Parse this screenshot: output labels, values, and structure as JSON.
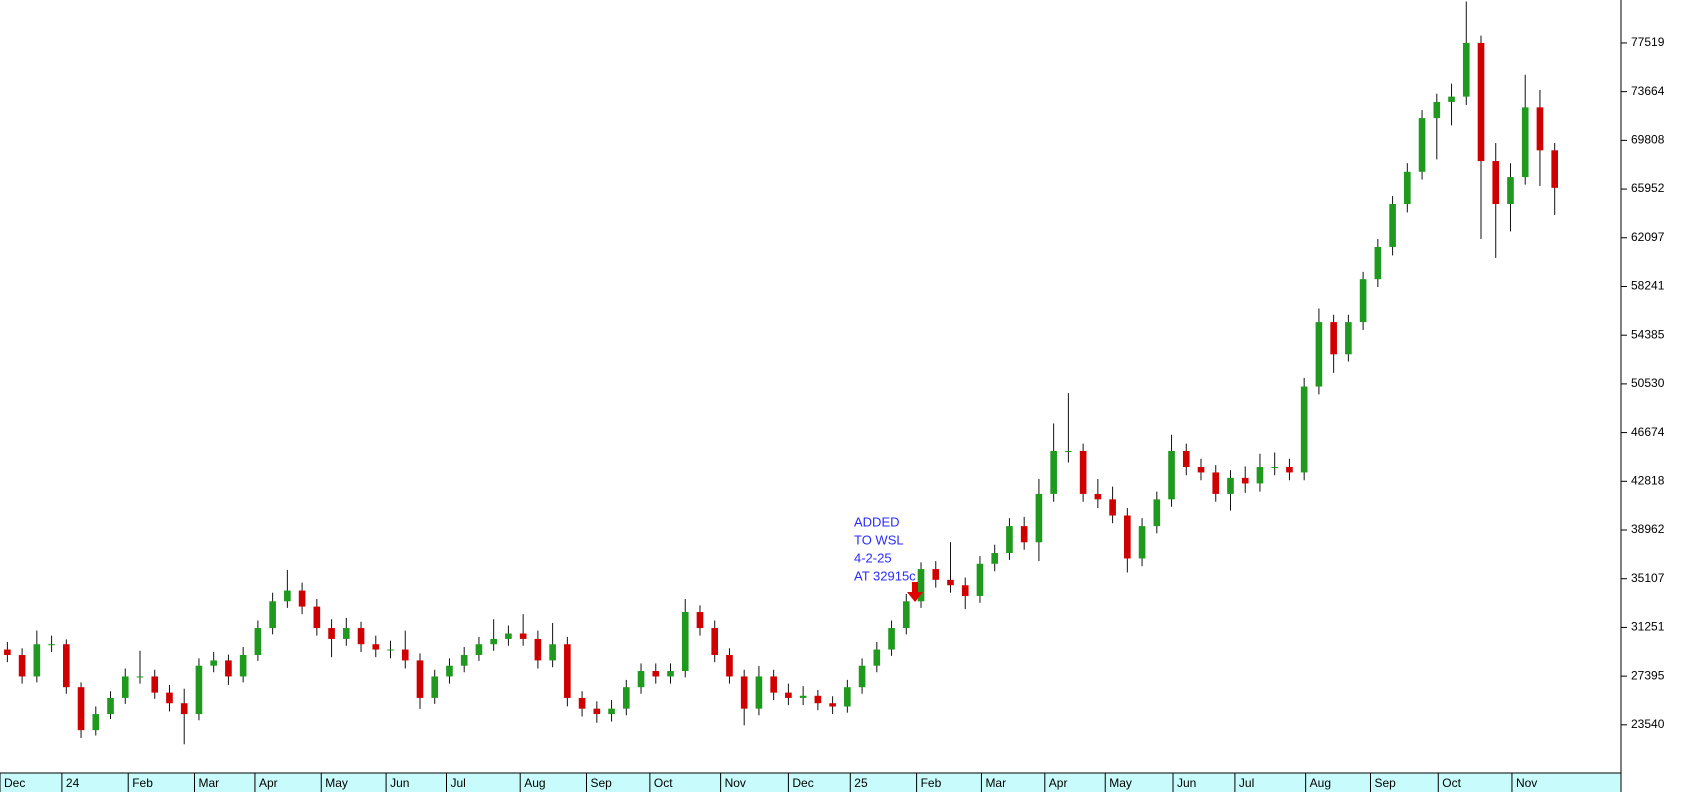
{
  "chart_data": {
    "type": "candlestick",
    "up_color": "#1f9a1f",
    "down_color": "#d00000",
    "xlim": [
      0,
      110
    ],
    "ylim": [
      19885,
      80919
    ],
    "yticks": [
      23540,
      27395,
      31251,
      35107,
      38962,
      42818,
      46674,
      50530,
      54385,
      58241,
      62097,
      65952,
      69808,
      73664,
      77519
    ],
    "xticks": [
      {
        "value": 0,
        "label": "Dec"
      },
      {
        "value": 4.2,
        "label": "24"
      },
      {
        "value": 8.7,
        "label": "Feb"
      },
      {
        "value": 13.2,
        "label": "Mar"
      },
      {
        "value": 17.3,
        "label": "Apr"
      },
      {
        "value": 21.8,
        "label": "May"
      },
      {
        "value": 26.2,
        "label": "Jun"
      },
      {
        "value": 30.3,
        "label": "Jul"
      },
      {
        "value": 35.3,
        "label": "Aug"
      },
      {
        "value": 39.8,
        "label": "Sep"
      },
      {
        "value": 44.1,
        "label": "Oct"
      },
      {
        "value": 48.9,
        "label": "Nov"
      },
      {
        "value": 53.5,
        "label": "Dec"
      },
      {
        "value": 57.7,
        "label": "25"
      },
      {
        "value": 62.2,
        "label": "Feb"
      },
      {
        "value": 66.6,
        "label": "Mar"
      },
      {
        "value": 70.9,
        "label": "Apr"
      },
      {
        "value": 75.0,
        "label": "May"
      },
      {
        "value": 79.6,
        "label": "Jun"
      },
      {
        "value": 83.8,
        "label": "Jul"
      },
      {
        "value": 88.6,
        "label": "Aug"
      },
      {
        "value": 93.0,
        "label": "Sep"
      },
      {
        "value": 97.6,
        "label": "Oct"
      },
      {
        "value": 102.6,
        "label": "Nov"
      }
    ],
    "annotation": [
      "ADDED",
      "TO WSL",
      "4-2-25",
      "AT 32915c"
    ],
    "open": [
      29500,
      29070,
      27370,
      29920,
      29920,
      26520,
      23120,
      24390,
      25670,
      27370,
      27370,
      26090,
      25250,
      24390,
      28220,
      28640,
      27370,
      29070,
      31200,
      33320,
      34170,
      32900,
      31200,
      30340,
      31200,
      29920,
      29500,
      29500,
      28640,
      25670,
      27370,
      28220,
      29070,
      29920,
      30340,
      30770,
      30340,
      28640,
      29920,
      25670,
      24820,
      24390,
      24820,
      26520,
      27800,
      27370,
      27800,
      32470,
      31200,
      29070,
      27370,
      24820,
      27370,
      26090,
      25670,
      25840,
      25250,
      24990,
      26520,
      28220,
      29500,
      31200,
      33320,
      35870,
      35020,
      34590,
      33740,
      36290,
      37140,
      39270,
      37990,
      41820,
      45220,
      45220,
      41820,
      41390,
      40110,
      36710,
      39270,
      41390,
      45220,
      43950,
      43520,
      41820,
      43090,
      42650,
      43950,
      43950,
      43520,
      50320,
      55420,
      52870,
      55420,
      58820,
      61370,
      64770,
      67320,
      71570,
      72850,
      73270,
      77520,
      68170,
      64770,
      66900,
      72420,
      69020
    ],
    "high": [
      30100,
      29600,
      31000,
      30600,
      30300,
      26900,
      25000,
      26200,
      28000,
      29400,
      27900,
      26700,
      26400,
      28800,
      29300,
      29100,
      29700,
      31800,
      34000,
      35800,
      34800,
      33500,
      31900,
      32000,
      31700,
      30600,
      30200,
      31000,
      29200,
      27900,
      28800,
      29700,
      30500,
      31900,
      31400,
      32300,
      31000,
      31600,
      30500,
      26200,
      25400,
      25500,
      27100,
      28400,
      28400,
      28400,
      33500,
      33000,
      31800,
      29600,
      27900,
      28200,
      27900,
      26800,
      26600,
      26300,
      25800,
      27100,
      28800,
      30100,
      31800,
      33900,
      36400,
      36500,
      38000,
      35200,
      36900,
      37800,
      39900,
      40000,
      43000,
      47400,
      49800,
      45800,
      43000,
      42400,
      40700,
      39900,
      42000,
      46500,
      45800,
      44600,
      44100,
      43700,
      44000,
      45000,
      45100,
      44600,
      51000,
      56500,
      56000,
      56000,
      59400,
      62000,
      65400,
      68000,
      72200,
      73500,
      74300,
      80800,
      78100,
      69600,
      68000,
      75000,
      73800,
      69600
    ],
    "low": [
      28500,
      26800,
      26900,
      29300,
      26000,
      22500,
      22700,
      24000,
      25200,
      26800,
      25600,
      24600,
      22000,
      23900,
      27700,
      26700,
      26900,
      28600,
      30700,
      32800,
      32300,
      30600,
      28900,
      29800,
      29300,
      28900,
      28800,
      28000,
      24800,
      25200,
      26800,
      27700,
      28600,
      29400,
      29800,
      29800,
      28000,
      28100,
      25000,
      24200,
      23700,
      23800,
      24300,
      26000,
      26800,
      26800,
      27300,
      30600,
      28500,
      26800,
      23500,
      24300,
      25500,
      25100,
      25100,
      24700,
      24400,
      24500,
      26000,
      27700,
      29000,
      30700,
      32800,
      34400,
      34000,
      32700,
      33200,
      35700,
      36600,
      37400,
      36500,
      41200,
      44300,
      41200,
      40700,
      39500,
      35600,
      36100,
      38700,
      40800,
      43300,
      42900,
      41200,
      40500,
      41900,
      42000,
      43300,
      42900,
      42900,
      49700,
      51400,
      52300,
      54800,
      58200,
      60700,
      64100,
      66700,
      68300,
      71000,
      72600,
      62000,
      60500,
      62600,
      66300,
      66200,
      63900
    ],
    "close": [
      29070,
      27370,
      29920,
      29920,
      26520,
      23120,
      24390,
      25670,
      27370,
      27370,
      26090,
      25250,
      24390,
      28220,
      28640,
      27370,
      29070,
      31200,
      33320,
      34170,
      32900,
      31200,
      30340,
      31200,
      29920,
      29500,
      29500,
      28640,
      25670,
      27370,
      28220,
      29070,
      29920,
      30340,
      30770,
      30340,
      28640,
      29920,
      25670,
      24820,
      24390,
      24820,
      26520,
      27800,
      27370,
      27800,
      32470,
      31200,
      29070,
      27370,
      24820,
      27370,
      26090,
      25670,
      25840,
      25250,
      24990,
      26520,
      28220,
      29500,
      31200,
      33320,
      35870,
      35020,
      34590,
      33740,
      36290,
      37140,
      39270,
      37990,
      41820,
      45220,
      45220,
      41820,
      41390,
      40110,
      36710,
      39270,
      41390,
      45220,
      43950,
      43520,
      41820,
      43090,
      42650,
      43950,
      43950,
      43520,
      50320,
      55420,
      52870,
      55420,
      58820,
      61370,
      64770,
      67320,
      71570,
      72850,
      73270,
      77520,
      68170,
      64770,
      66900,
      72420,
      69020,
      66050
    ]
  }
}
